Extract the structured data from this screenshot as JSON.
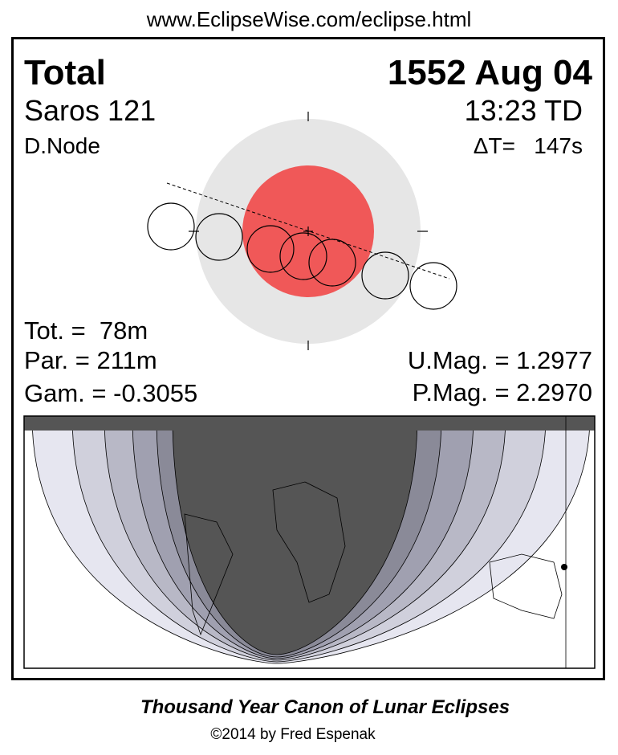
{
  "header": {
    "url": "www.EclipseWise.com/eclipse.html"
  },
  "panel": {
    "type": "Total",
    "date": "1552 Aug 04",
    "saros": "Saros 121",
    "time": "13:23 TD",
    "node": "D.Node",
    "delta_t": "ΔT=   147s",
    "totality": "Tot. =  78m",
    "partial": "Par. = 211m",
    "gamma": "Gam. = -0.3055",
    "umbral_mag": "U.Mag. = 1.2977",
    "penumbral_mag": "P.Mag. = 2.2970"
  },
  "footer": {
    "title": "Thousand Year Canon of Lunar Eclipses",
    "credit": "©2014 by Fred Espenak"
  }
}
